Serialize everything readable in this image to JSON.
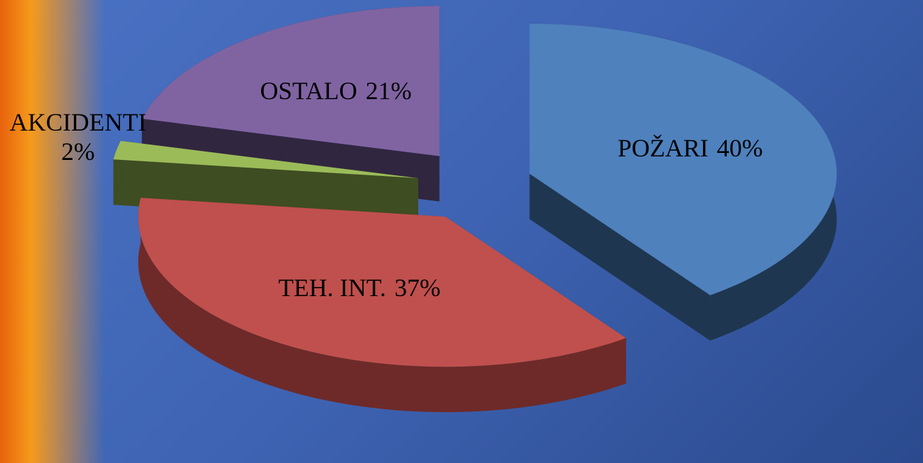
{
  "chart_data": {
    "type": "pie",
    "categories": [
      "POŽARI",
      "TEH. INT.",
      "AKCIDENTI",
      "OSTALO"
    ],
    "values": [
      40,
      37,
      2,
      21
    ],
    "value_labels": [
      "40%",
      "37%",
      "2%",
      "21%"
    ],
    "colors": [
      "#4f81bd",
      "#c0504d",
      "#9bbb59",
      "#8064a2"
    ],
    "side_colors": [
      "#1f3650",
      "#6e2a28",
      "#3e4d22",
      "#31263f"
    ]
  }
}
